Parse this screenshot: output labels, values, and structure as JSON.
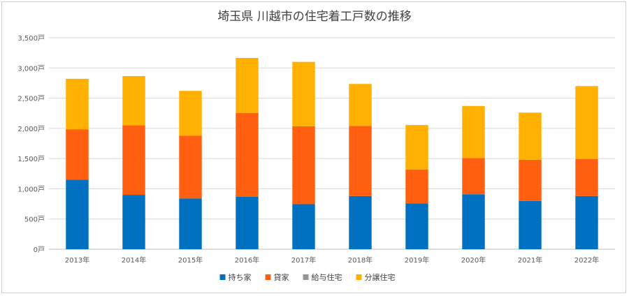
{
  "chart_data": {
    "type": "bar",
    "stacked": true,
    "title": "埼玉県 川越市の住宅着工戸数の推移",
    "xlabel": "",
    "ylabel": "",
    "categories": [
      "2013年",
      "2014年",
      "2015年",
      "2016年",
      "2017年",
      "2018年",
      "2019年",
      "2020年",
      "2021年",
      "2022年"
    ],
    "ylim": [
      0,
      3500
    ],
    "y_ticks": [
      0,
      500,
      1000,
      1500,
      2000,
      2500,
      3000,
      3500
    ],
    "y_tick_labels": [
      "0戸",
      "500戸",
      "1,000戸",
      "1,500戸",
      "2,000戸",
      "2,500戸",
      "3,000戸",
      "3,500戸"
    ],
    "grid": true,
    "legend_position": "bottom",
    "series": [
      {
        "name": "持ち家",
        "color": "#0070C0",
        "values": [
          1150,
          900,
          840,
          870,
          745,
          880,
          760,
          910,
          800,
          880
        ]
      },
      {
        "name": "貸家",
        "color": "#FF5F0F",
        "values": [
          835,
          1150,
          1040,
          1385,
          1290,
          1160,
          560,
          600,
          680,
          610
        ]
      },
      {
        "name": "給与住宅",
        "color": "#969696",
        "values": [
          0,
          0,
          0,
          0,
          0,
          0,
          0,
          0,
          0,
          0
        ]
      },
      {
        "name": "分譲住宅",
        "color": "#FFB000",
        "values": [
          835,
          815,
          740,
          910,
          1065,
          695,
          735,
          860,
          780,
          1210
        ]
      }
    ]
  }
}
